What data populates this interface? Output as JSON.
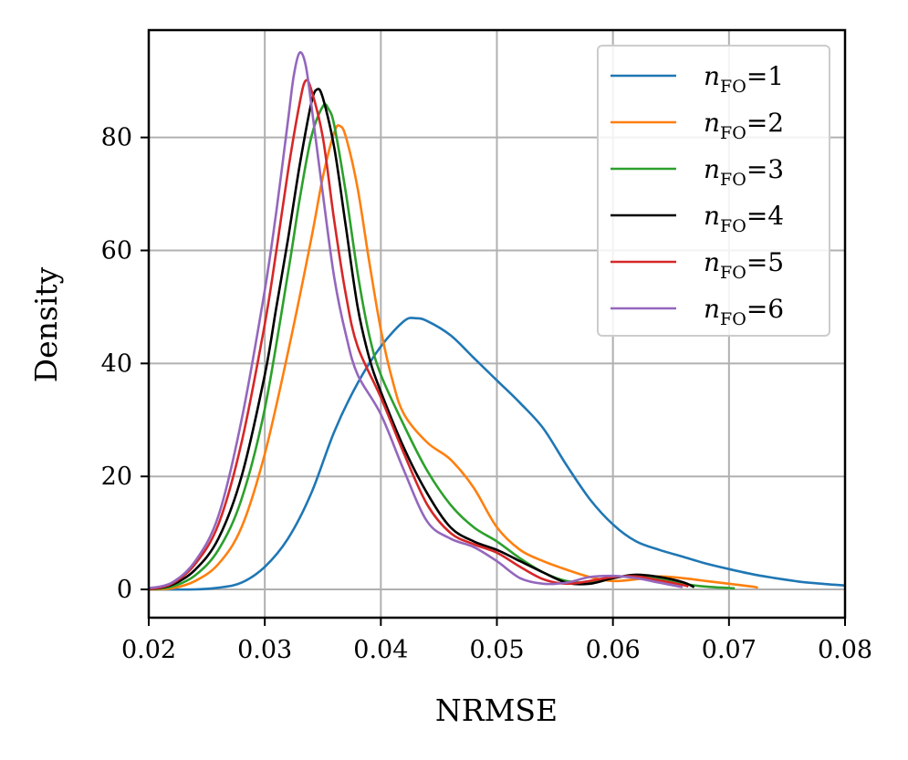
{
  "chart_data": {
    "type": "line",
    "title": "",
    "xlabel": "NRMSE",
    "ylabel": "Density",
    "xlim": [
      0.02,
      0.08
    ],
    "ylim": [
      -5,
      99
    ],
    "grid": true,
    "legend_position": "top-right",
    "x_ticks": [
      0.02,
      0.03,
      0.04,
      0.05,
      0.06,
      0.07,
      0.08
    ],
    "x_tick_labels": [
      "0.02",
      "0.03",
      "0.04",
      "0.05",
      "0.06",
      "0.07",
      "0.08"
    ],
    "y_ticks": [
      0,
      20,
      40,
      60,
      80
    ],
    "y_tick_labels": [
      "0",
      "20",
      "40",
      "60",
      "80"
    ],
    "series": [
      {
        "name": "nFO=1",
        "legend_var": "n",
        "legend_sub": "FO",
        "legend_val": "=1",
        "color": "#1f77b4",
        "points": [
          [
            0.02,
            0
          ],
          [
            0.024,
            0
          ],
          [
            0.026,
            0.3
          ],
          [
            0.028,
            1.2
          ],
          [
            0.03,
            4
          ],
          [
            0.032,
            9
          ],
          [
            0.034,
            17
          ],
          [
            0.036,
            28
          ],
          [
            0.038,
            36.5
          ],
          [
            0.04,
            43
          ],
          [
            0.042,
            47.5
          ],
          [
            0.043,
            48
          ],
          [
            0.044,
            47.5
          ],
          [
            0.046,
            45
          ],
          [
            0.048,
            41
          ],
          [
            0.05,
            37
          ],
          [
            0.052,
            33
          ],
          [
            0.054,
            28.5
          ],
          [
            0.056,
            22
          ],
          [
            0.058,
            16
          ],
          [
            0.06,
            11.5
          ],
          [
            0.062,
            8.5
          ],
          [
            0.064,
            7
          ],
          [
            0.066,
            5.8
          ],
          [
            0.068,
            4.6
          ],
          [
            0.07,
            3.6
          ],
          [
            0.072,
            2.7
          ],
          [
            0.074,
            2
          ],
          [
            0.076,
            1.4
          ],
          [
            0.078,
            1
          ],
          [
            0.08,
            0.7
          ]
        ]
      },
      {
        "name": "nFO=2",
        "legend_var": "n",
        "legend_sub": "FO",
        "legend_val": "=2",
        "color": "#ff7f0e",
        "points": [
          [
            0.02,
            0
          ],
          [
            0.022,
            0.2
          ],
          [
            0.024,
            1.5
          ],
          [
            0.026,
            4.5
          ],
          [
            0.028,
            11
          ],
          [
            0.03,
            24
          ],
          [
            0.032,
            42
          ],
          [
            0.034,
            62
          ],
          [
            0.035,
            73
          ],
          [
            0.036,
            81
          ],
          [
            0.0365,
            82
          ],
          [
            0.037,
            80
          ],
          [
            0.038,
            71
          ],
          [
            0.039,
            58
          ],
          [
            0.04,
            46
          ],
          [
            0.041,
            37
          ],
          [
            0.042,
            31
          ],
          [
            0.044,
            26
          ],
          [
            0.046,
            23
          ],
          [
            0.048,
            18
          ],
          [
            0.05,
            11
          ],
          [
            0.052,
            7
          ],
          [
            0.054,
            5
          ],
          [
            0.056,
            3.5
          ],
          [
            0.058,
            2.2
          ],
          [
            0.06,
            1.5
          ],
          [
            0.062,
            1.8
          ],
          [
            0.064,
            2.3
          ],
          [
            0.066,
            2
          ],
          [
            0.068,
            1.5
          ],
          [
            0.07,
            1
          ],
          [
            0.072,
            0.5
          ],
          [
            0.0725,
            0.3
          ]
        ]
      },
      {
        "name": "nFO=3",
        "legend_var": "n",
        "legend_sub": "FO",
        "legend_val": "=3",
        "color": "#2ca02c",
        "points": [
          [
            0.02,
            0
          ],
          [
            0.022,
            0.5
          ],
          [
            0.024,
            2.5
          ],
          [
            0.026,
            7
          ],
          [
            0.028,
            16
          ],
          [
            0.03,
            32
          ],
          [
            0.032,
            56
          ],
          [
            0.033,
            69
          ],
          [
            0.034,
            80
          ],
          [
            0.035,
            85.5
          ],
          [
            0.0355,
            85
          ],
          [
            0.036,
            82
          ],
          [
            0.037,
            70
          ],
          [
            0.038,
            56
          ],
          [
            0.039,
            45
          ],
          [
            0.04,
            38
          ],
          [
            0.042,
            29
          ],
          [
            0.044,
            21
          ],
          [
            0.046,
            15
          ],
          [
            0.048,
            11
          ],
          [
            0.05,
            8.5
          ],
          [
            0.052,
            5.5
          ],
          [
            0.054,
            3
          ],
          [
            0.056,
            1.5
          ],
          [
            0.058,
            1.2
          ],
          [
            0.06,
            2
          ],
          [
            0.062,
            2.5
          ],
          [
            0.064,
            1.8
          ],
          [
            0.066,
            1
          ],
          [
            0.068,
            0.5
          ],
          [
            0.0705,
            0.2
          ]
        ]
      },
      {
        "name": "nFO=4",
        "legend_var": "n",
        "legend_sub": "FO",
        "legend_val": "=4",
        "color": "#000000",
        "points": [
          [
            0.02,
            0
          ],
          [
            0.022,
            0.8
          ],
          [
            0.024,
            3.5
          ],
          [
            0.026,
            9
          ],
          [
            0.028,
            20
          ],
          [
            0.03,
            38
          ],
          [
            0.031,
            50
          ],
          [
            0.032,
            62
          ],
          [
            0.033,
            75
          ],
          [
            0.034,
            86
          ],
          [
            0.0345,
            88.5
          ],
          [
            0.035,
            87
          ],
          [
            0.036,
            78
          ],
          [
            0.037,
            64
          ],
          [
            0.038,
            50
          ],
          [
            0.039,
            41
          ],
          [
            0.04,
            35
          ],
          [
            0.042,
            25
          ],
          [
            0.044,
            17
          ],
          [
            0.046,
            11
          ],
          [
            0.048,
            8.5
          ],
          [
            0.05,
            7
          ],
          [
            0.052,
            5
          ],
          [
            0.054,
            3
          ],
          [
            0.056,
            1.2
          ],
          [
            0.058,
            1
          ],
          [
            0.06,
            2
          ],
          [
            0.062,
            2.6
          ],
          [
            0.064,
            2.2
          ],
          [
            0.066,
            1.3
          ],
          [
            0.067,
            0.4
          ]
        ]
      },
      {
        "name": "nFO=5",
        "legend_var": "n",
        "legend_sub": "FO",
        "legend_val": "=5",
        "color": "#d62728",
        "points": [
          [
            0.02,
            0
          ],
          [
            0.022,
            1
          ],
          [
            0.024,
            4.5
          ],
          [
            0.026,
            11.5
          ],
          [
            0.028,
            26
          ],
          [
            0.03,
            47
          ],
          [
            0.031,
            60
          ],
          [
            0.032,
            74
          ],
          [
            0.033,
            86
          ],
          [
            0.0335,
            90
          ],
          [
            0.034,
            88.5
          ],
          [
            0.035,
            80
          ],
          [
            0.036,
            65
          ],
          [
            0.037,
            52
          ],
          [
            0.038,
            43
          ],
          [
            0.04,
            34
          ],
          [
            0.042,
            24
          ],
          [
            0.044,
            15
          ],
          [
            0.046,
            10
          ],
          [
            0.048,
            8
          ],
          [
            0.05,
            6.5
          ],
          [
            0.052,
            4
          ],
          [
            0.054,
            1.8
          ],
          [
            0.056,
            1
          ],
          [
            0.058,
            1.5
          ],
          [
            0.06,
            2.2
          ],
          [
            0.062,
            2.3
          ],
          [
            0.064,
            1.6
          ],
          [
            0.066,
            0.8
          ],
          [
            0.0665,
            0.5
          ]
        ]
      },
      {
        "name": "nFO=6",
        "legend_var": "n",
        "legend_sub": "FO",
        "legend_val": "=6",
        "color": "#9467bd",
        "points": [
          [
            0.02,
            0.2
          ],
          [
            0.022,
            1.2
          ],
          [
            0.024,
            5
          ],
          [
            0.026,
            13
          ],
          [
            0.028,
            30
          ],
          [
            0.03,
            53
          ],
          [
            0.031,
            67
          ],
          [
            0.032,
            83
          ],
          [
            0.0325,
            91
          ],
          [
            0.033,
            95
          ],
          [
            0.0335,
            93
          ],
          [
            0.034,
            86
          ],
          [
            0.035,
            70
          ],
          [
            0.036,
            55
          ],
          [
            0.037,
            45
          ],
          [
            0.038,
            38
          ],
          [
            0.04,
            31
          ],
          [
            0.042,
            21
          ],
          [
            0.044,
            12
          ],
          [
            0.046,
            9
          ],
          [
            0.048,
            7.5
          ],
          [
            0.05,
            5
          ],
          [
            0.052,
            2
          ],
          [
            0.054,
            1
          ],
          [
            0.056,
            1.2
          ],
          [
            0.058,
            2.2
          ],
          [
            0.06,
            2.4
          ],
          [
            0.062,
            2
          ],
          [
            0.064,
            1.2
          ],
          [
            0.066,
            0.4
          ]
        ]
      }
    ]
  }
}
